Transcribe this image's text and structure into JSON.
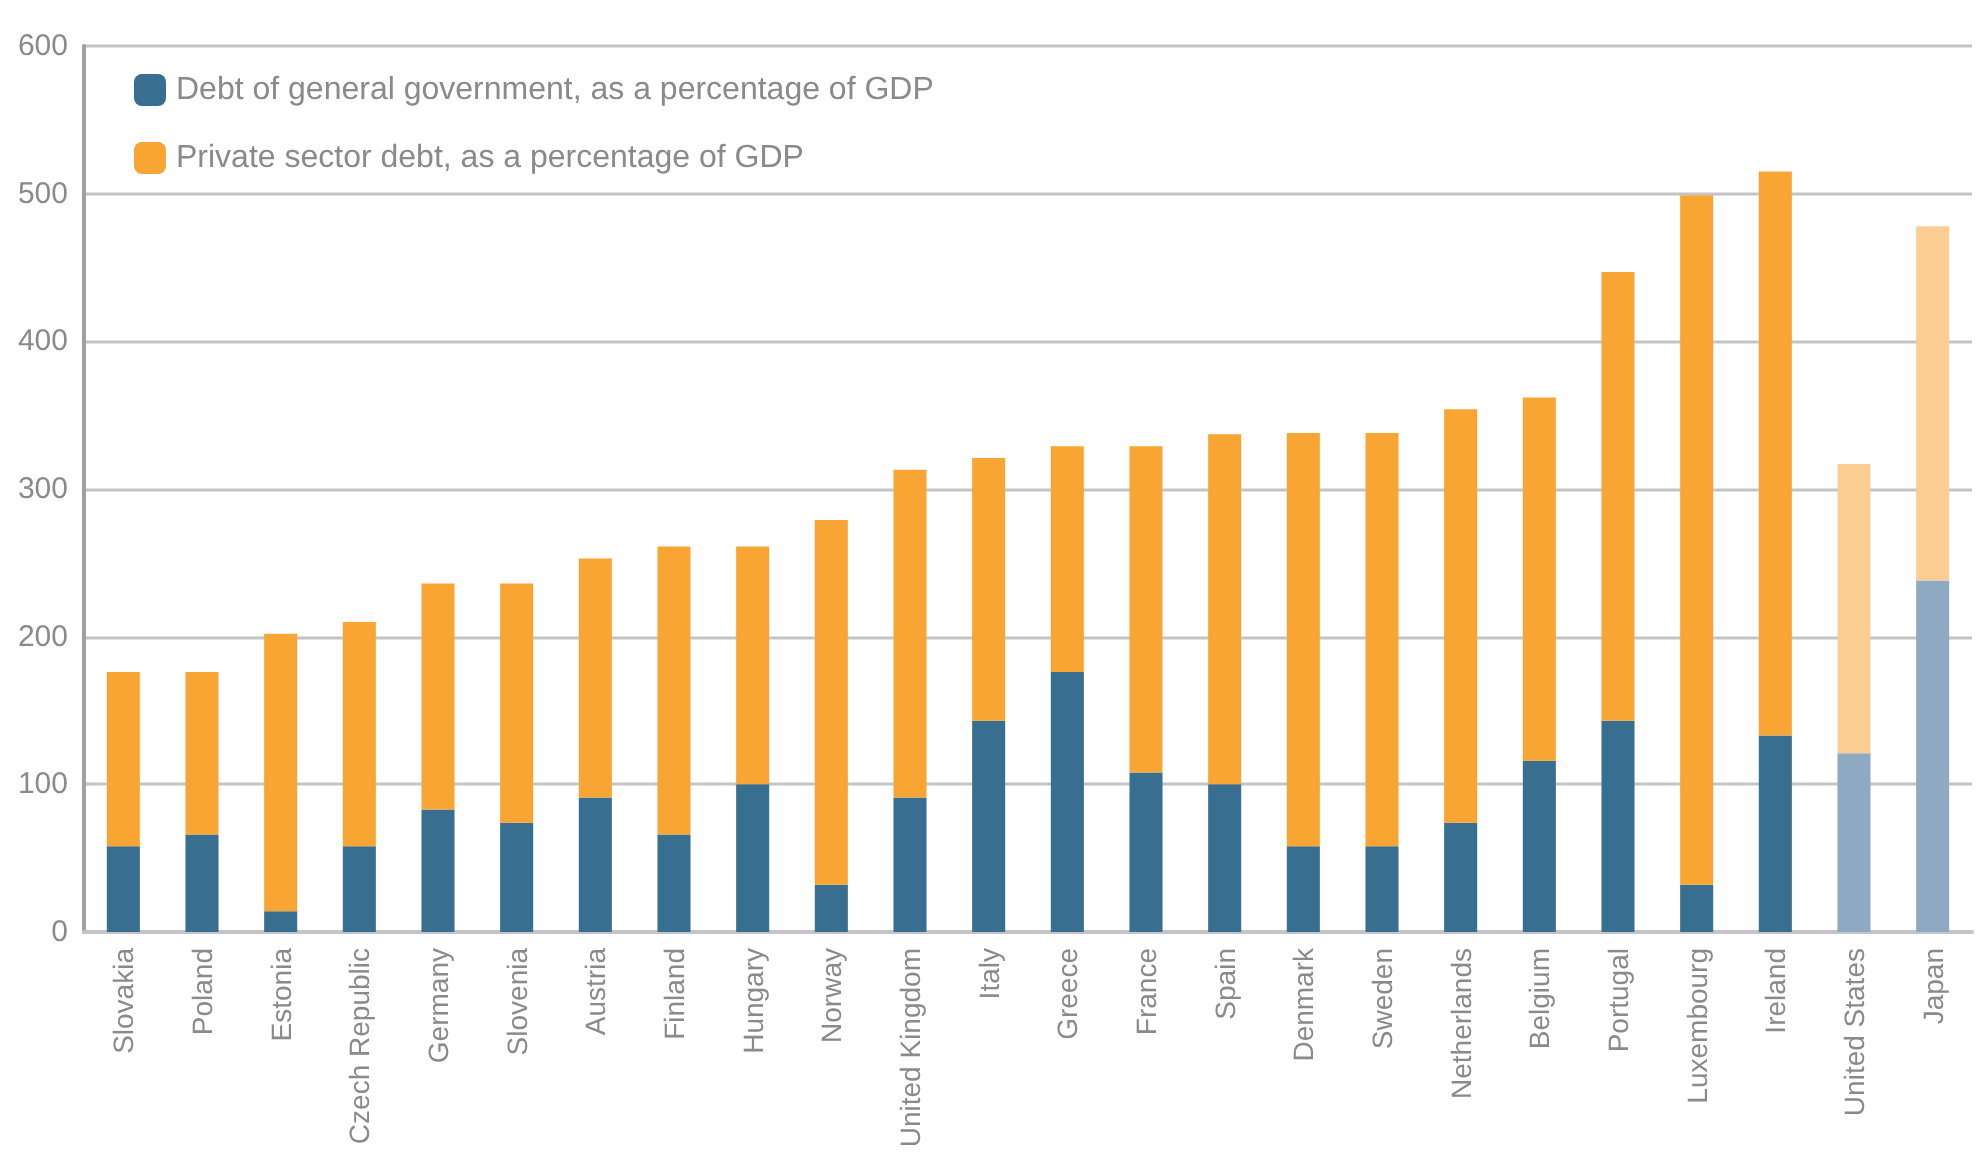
{
  "chart_data": {
    "type": "bar",
    "stacked": true,
    "categories": [
      "Slovakia",
      "Poland",
      "Estonia",
      "Czech Republic",
      "Germany",
      "Slovenia",
      "Austria",
      "Finland",
      "Hungary",
      "Norway",
      "United Kingdom",
      "Italy",
      "Greece",
      "France",
      "Spain",
      "Denmark",
      "Sweden",
      "Netherlands",
      "Belgium",
      "Portugal",
      "Luxembourg",
      "Ireland",
      "United States",
      "Japan"
    ],
    "series": [
      {
        "name": "Debt of general government, as a percentage of GDP",
        "color": "#386e8f",
        "colors": [
          "#386e8f",
          "#386e8f",
          "#386e8f",
          "#386e8f",
          "#386e8f",
          "#386e8f",
          "#386e8f",
          "#386e8f",
          "#386e8f",
          "#386e8f",
          "#386e8f",
          "#386e8f",
          "#386e8f",
          "#386e8f",
          "#386e8f",
          "#386e8f",
          "#386e8f",
          "#386e8f",
          "#386e8f",
          "#386e8f",
          "#386e8f",
          "#386e8f",
          "#8eaac2",
          "#8eaac2"
        ],
        "values": [
          58,
          66,
          14,
          58,
          83,
          74,
          91,
          66,
          100,
          32,
          91,
          143,
          176,
          108,
          100,
          58,
          58,
          74,
          116,
          143,
          32,
          133,
          121,
          238
        ]
      },
      {
        "name": "Private sector debt, as a percentage of GDP",
        "color": "#f9a533",
        "colors": [
          "#f9a533",
          "#f9a533",
          "#f9a533",
          "#f9a533",
          "#f9a533",
          "#f9a533",
          "#f9a533",
          "#f9a533",
          "#f9a533",
          "#f9a533",
          "#f9a533",
          "#f9a533",
          "#f9a533",
          "#f9a533",
          "#f9a533",
          "#f9a533",
          "#f9a533",
          "#f9a533",
          "#f9a533",
          "#f9a533",
          "#f9a533",
          "#f9a533",
          "#fccd92",
          "#fccd92"
        ],
        "values": [
          118,
          110,
          188,
          152,
          153,
          162,
          162,
          195,
          161,
          247,
          222,
          178,
          153,
          221,
          237,
          280,
          280,
          280,
          246,
          304,
          467,
          382,
          196,
          240
        ]
      }
    ],
    "ylim": [
      0,
      600
    ],
    "yticks": [
      0,
      100,
      200,
      300,
      400,
      500,
      600
    ],
    "grid": "y",
    "legend": "top left"
  }
}
